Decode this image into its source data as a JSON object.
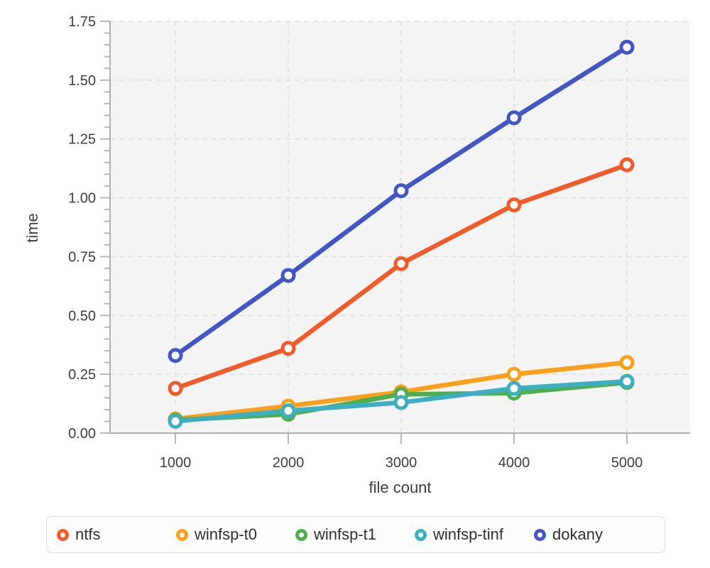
{
  "chart_data": {
    "type": "line",
    "title": "",
    "xlabel": "file count",
    "ylabel": "time",
    "x": [
      1000,
      2000,
      3000,
      4000,
      5000
    ],
    "x_tick_labels": [
      "1000",
      "2000",
      "3000",
      "4000",
      "5000"
    ],
    "xlim": [
      421,
      5560
    ],
    "ylim": [
      0,
      1.75
    ],
    "y_major_step": 0.25,
    "y_minor_step": 0.05,
    "y_tick_labels": [
      "0.00",
      "0.25",
      "0.50",
      "0.75",
      "1.00",
      "1.25",
      "1.50",
      "1.75"
    ],
    "grid": "dashed",
    "legend_position": "bottom",
    "plot_bg_color": "#f4f4f4",
    "gridline_color": "#e1e1e1",
    "axis_color": "#b0b0b0",
    "series": [
      {
        "name": "ntfs",
        "color": "#ef5b2b",
        "values": [
          0.19,
          0.36,
          0.72,
          0.97,
          1.14
        ]
      },
      {
        "name": "winfsp-t0",
        "color": "#f8a01c",
        "values": [
          0.06,
          0.115,
          0.175,
          0.25,
          0.3
        ]
      },
      {
        "name": "winfsp-t1",
        "color": "#4fae4e",
        "values": [
          0.055,
          0.08,
          0.165,
          0.17,
          0.215
        ]
      },
      {
        "name": "winfsp-tinf",
        "color": "#3eafc2",
        "values": [
          0.05,
          0.095,
          0.13,
          0.19,
          0.22
        ]
      },
      {
        "name": "dokany",
        "color": "#4455c4",
        "values": [
          0.33,
          0.67,
          1.03,
          1.34,
          1.64
        ]
      }
    ]
  }
}
